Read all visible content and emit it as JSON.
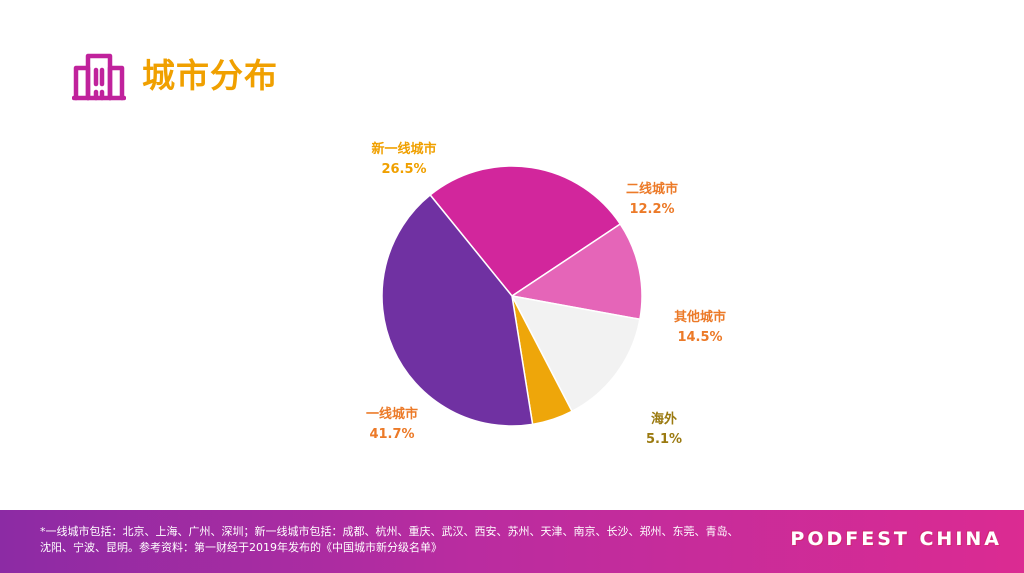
{
  "header": {
    "title": "城市分布",
    "icon": "buildings-icon",
    "icon_color": "#c0229c"
  },
  "chart_data": {
    "type": "pie",
    "title": "",
    "slices": [
      {
        "name": "新一线城市",
        "percent_label": "26.5%",
        "value": 26.5,
        "color": "#d2269c",
        "label_color": "#f0a000"
      },
      {
        "name": "二线城市",
        "percent_label": "12.2%",
        "value": 12.2,
        "color": "#e565b8",
        "label_color": "#ec7a28"
      },
      {
        "name": "其他城市",
        "percent_label": "14.5%",
        "value": 14.5,
        "color": "#f2f2f2",
        "label_color": "#ec7a28"
      },
      {
        "name": "海外",
        "percent_label": "5.1%",
        "value": 5.1,
        "color": "#eea60a",
        "label_color": "#9b7a10"
      },
      {
        "name": "一线城市",
        "percent_label": "41.7%",
        "value": 41.7,
        "color": "#7031a2",
        "label_color": "#ec7a28"
      }
    ],
    "legend": "none"
  },
  "footer": {
    "footnote": "*一线城市包括：北京、上海、广州、深圳；新一线城市包括：成都、杭州、重庆、武汉、西安、苏州、天津、南京、长沙、郑州、东莞、青岛、沈阳、宁波、昆明。参考资料：第一财经于2019年发布的《中国城市新分级名单》",
    "brand": "PODFEST CHINA"
  }
}
